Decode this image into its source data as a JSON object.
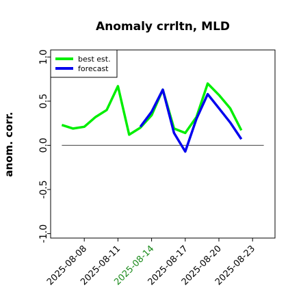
{
  "chart_data": {
    "type": "line",
    "title": "Anomaly crrltn, MLD",
    "ylabel": "anom. corr.",
    "xlabel": "",
    "ylim": [
      -1.05,
      1.08
    ],
    "xlim": [
      "2025-08-05",
      "2025-08-25"
    ],
    "yticks": [
      {
        "value": 1.0,
        "label": "1.0"
      },
      {
        "value": 0.5,
        "label": "0.5"
      },
      {
        "value": 0.0,
        "label": "0.0"
      },
      {
        "value": -0.5,
        "label": "-0.5"
      },
      {
        "value": -1.0,
        "label": "-1.0"
      }
    ],
    "xticks": [
      {
        "date": "2025-08-08",
        "label": "2025-08-08",
        "color": "#000000"
      },
      {
        "date": "2025-08-11",
        "label": "2025-08-11",
        "color": "#000000"
      },
      {
        "date": "2025-08-14",
        "label": "2025-08-14",
        "color": "#1a8a1a"
      },
      {
        "date": "2025-08-17",
        "label": "2025-08-17",
        "color": "#000000"
      },
      {
        "date": "2025-08-20",
        "label": "2025-08-20",
        "color": "#000000"
      },
      {
        "date": "2025-08-23",
        "label": "2025-08-23",
        "color": "#000000"
      }
    ],
    "reference_line": {
      "y": 0.0,
      "color": "#555555",
      "from": "2025-08-06",
      "to": "2025-08-24"
    },
    "grid": false,
    "legend_position": "top-left",
    "series": [
      {
        "name": "best est.",
        "color": "#00ee00",
        "points": [
          {
            "x": "2025-08-06",
            "y": 0.23
          },
          {
            "x": "2025-08-07",
            "y": 0.19
          },
          {
            "x": "2025-08-08",
            "y": 0.21
          },
          {
            "x": "2025-08-09",
            "y": 0.32
          },
          {
            "x": "2025-08-10",
            "y": 0.4
          },
          {
            "x": "2025-08-11",
            "y": 0.67
          },
          {
            "x": "2025-08-12",
            "y": 0.12
          },
          {
            "x": "2025-08-13",
            "y": 0.2
          },
          {
            "x": "2025-08-14",
            "y": 0.34
          },
          {
            "x": "2025-08-15",
            "y": 0.63
          },
          {
            "x": "2025-08-16",
            "y": 0.19
          },
          {
            "x": "2025-08-17",
            "y": 0.14
          },
          {
            "x": "2025-08-18",
            "y": 0.32
          },
          {
            "x": "2025-08-19",
            "y": 0.7
          },
          {
            "x": "2025-08-20",
            "y": 0.57
          },
          {
            "x": "2025-08-21",
            "y": 0.42
          },
          {
            "x": "2025-08-22",
            "y": 0.17
          }
        ]
      },
      {
        "name": "forecast",
        "color": "#0000ee",
        "points": [
          {
            "x": "2025-08-13",
            "y": 0.21
          },
          {
            "x": "2025-08-14",
            "y": 0.38
          },
          {
            "x": "2025-08-15",
            "y": 0.63
          },
          {
            "x": "2025-08-16",
            "y": 0.14
          },
          {
            "x": "2025-08-17",
            "y": -0.07
          },
          {
            "x": "2025-08-18",
            "y": 0.3
          },
          {
            "x": "2025-08-19",
            "y": 0.58
          },
          {
            "x": "2025-08-20",
            "y": 0.42
          },
          {
            "x": "2025-08-21",
            "y": 0.26
          },
          {
            "x": "2025-08-22",
            "y": 0.07
          }
        ]
      }
    ]
  }
}
